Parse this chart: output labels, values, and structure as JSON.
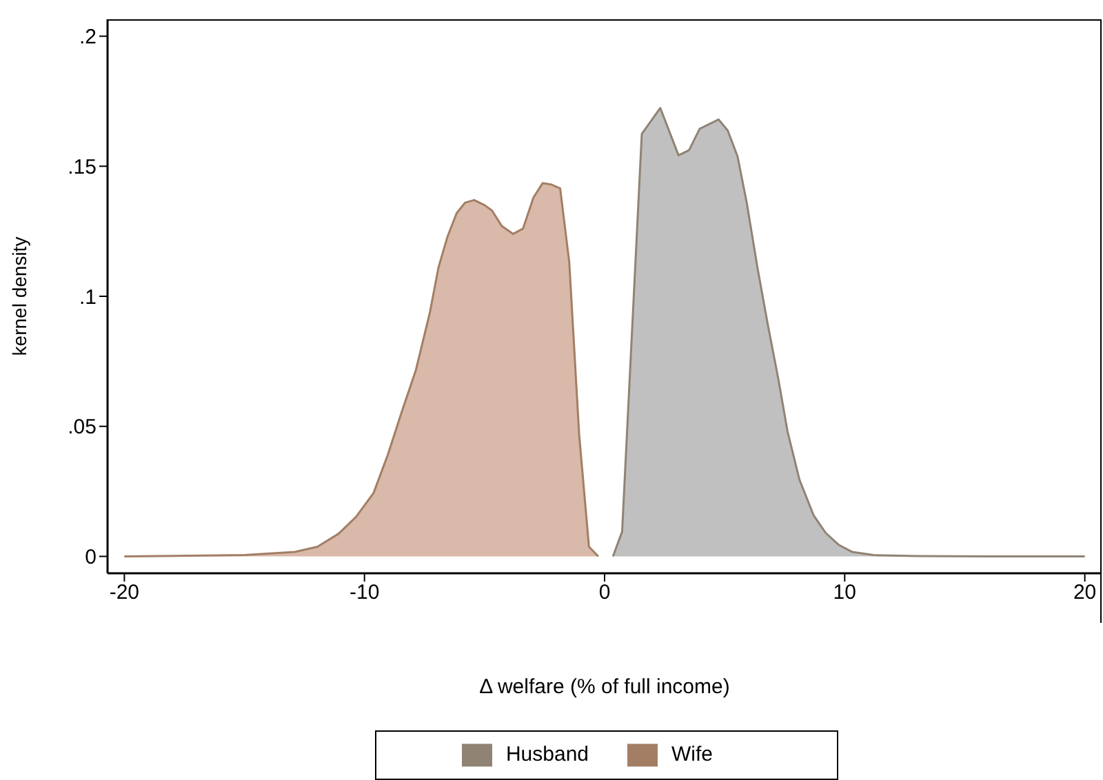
{
  "chart_data": {
    "type": "area",
    "xlabel": "Δ welfare (% of full income)",
    "ylabel": "kernel density",
    "xlim": [
      -20.7,
      20.7
    ],
    "xticks": [
      -20,
      -10,
      0,
      10,
      20
    ],
    "ylim": [
      -0.0065,
      0.2065
    ],
    "yticks": [
      {
        "value": 0,
        "label": "0"
      },
      {
        "value": 0.05,
        "label": ".05"
      },
      {
        "value": 0.1,
        "label": ".1"
      },
      {
        "value": 0.15,
        "label": ".15"
      },
      {
        "value": 0.2,
        "label": ".2"
      }
    ],
    "grid": false,
    "legend": "bottom",
    "series": [
      {
        "name": "Husband",
        "color": "#c0c0c0",
        "x": [
          0.35,
          0.73,
          1.55,
          2.32,
          3.08,
          3.52,
          3.96,
          4.75,
          5.13,
          5.54,
          5.92,
          6.36,
          6.8,
          7.24,
          7.62,
          8.12,
          8.71,
          9.21,
          9.74,
          10.32,
          11.2,
          13,
          16,
          20
        ],
        "values": [
          0,
          0.0095,
          0.1624,
          0.1724,
          0.1542,
          0.1562,
          0.1644,
          0.168,
          0.1637,
          0.1537,
          0.136,
          0.1114,
          0.089,
          0.068,
          0.048,
          0.0294,
          0.0157,
          0.009,
          0.0045,
          0.0017,
          0.0005,
          0.0001,
          0,
          0
        ]
      },
      {
        "name": "Wife",
        "color": "#d9b9a9",
        "x": [
          -20,
          -15,
          -12.9,
          -11.96,
          -11.08,
          -10.35,
          -9.62,
          -9.03,
          -8.45,
          -7.86,
          -7.27,
          -6.92,
          -6.54,
          -6.16,
          -5.81,
          -5.43,
          -4.99,
          -4.69,
          -4.28,
          -3.81,
          -3.4,
          -2.96,
          -2.58,
          -2.23,
          -1.85,
          -1.47,
          -1.06,
          -0.65,
          -0.26
        ],
        "values": [
          0,
          0.0005,
          0.0017,
          0.0037,
          0.0087,
          0.0152,
          0.0244,
          0.039,
          0.0555,
          0.0716,
          0.094,
          0.111,
          0.123,
          0.132,
          0.136,
          0.137,
          0.135,
          0.133,
          0.127,
          0.124,
          0.126,
          0.138,
          0.1435,
          0.143,
          0.1415,
          0.113,
          0.047,
          0.0037,
          0
        ]
      }
    ]
  }
}
